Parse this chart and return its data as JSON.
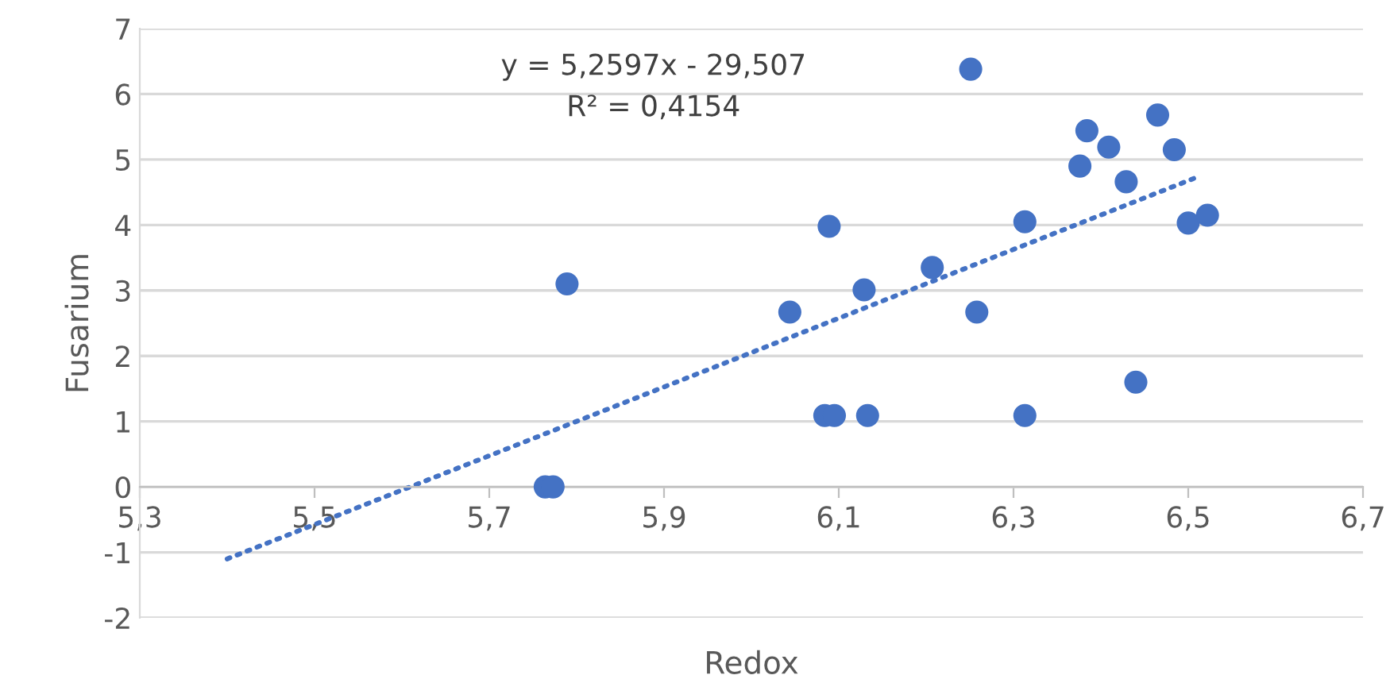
{
  "chart_data": {
    "type": "scatter",
    "xlabel": "Redox",
    "ylabel": "Fusarium",
    "series": [
      {
        "color": "#4472c4",
        "marker": "circle",
        "x": [
          5.764,
          5.773,
          5.789,
          6.044,
          6.084,
          6.095,
          6.089,
          6.129,
          6.133,
          6.207,
          6.251,
          6.258,
          6.313,
          6.313,
          6.376,
          6.384,
          6.409,
          6.429,
          6.44,
          6.465,
          6.484,
          6.5,
          6.522
        ],
        "values": [
          0,
          0,
          3.1,
          2.67,
          1.09,
          1.09,
          3.98,
          3.01,
          1.09,
          3.35,
          6.38,
          2.67,
          4.05,
          1.09,
          4.9,
          5.44,
          5.19,
          4.66,
          1.6,
          5.68,
          5.15,
          4.03,
          4.15
        ]
      },
      {
        "type": "line",
        "color": "#4472c4",
        "line_style": "dotted",
        "marker": "none",
        "x": [
          5.4,
          6.51
        ],
        "values": [
          -1.1,
          4.73
        ]
      }
    ],
    "annotations": [
      {
        "text": "y = 5,2597x - 29,507"
      },
      {
        "text": "R² = 0,4154"
      }
    ],
    "xlim": [
      5.3,
      6.7
    ],
    "ylim": [
      -2,
      7
    ],
    "xticks": [
      {
        "value": 5.3,
        "label": "5,3"
      },
      {
        "value": 5.5,
        "label": "5,5"
      },
      {
        "value": 5.7,
        "label": "5,7"
      },
      {
        "value": 5.9,
        "label": "5,9"
      },
      {
        "value": 6.1,
        "label": "6,1"
      },
      {
        "value": 6.3,
        "label": "6,3"
      },
      {
        "value": 6.5,
        "label": "6,5"
      },
      {
        "value": 6.7,
        "label": "6,7"
      }
    ],
    "yticks": [
      -2,
      -1,
      0,
      1,
      2,
      3,
      4,
      5,
      6,
      7
    ],
    "grid": "y",
    "legend": false
  }
}
